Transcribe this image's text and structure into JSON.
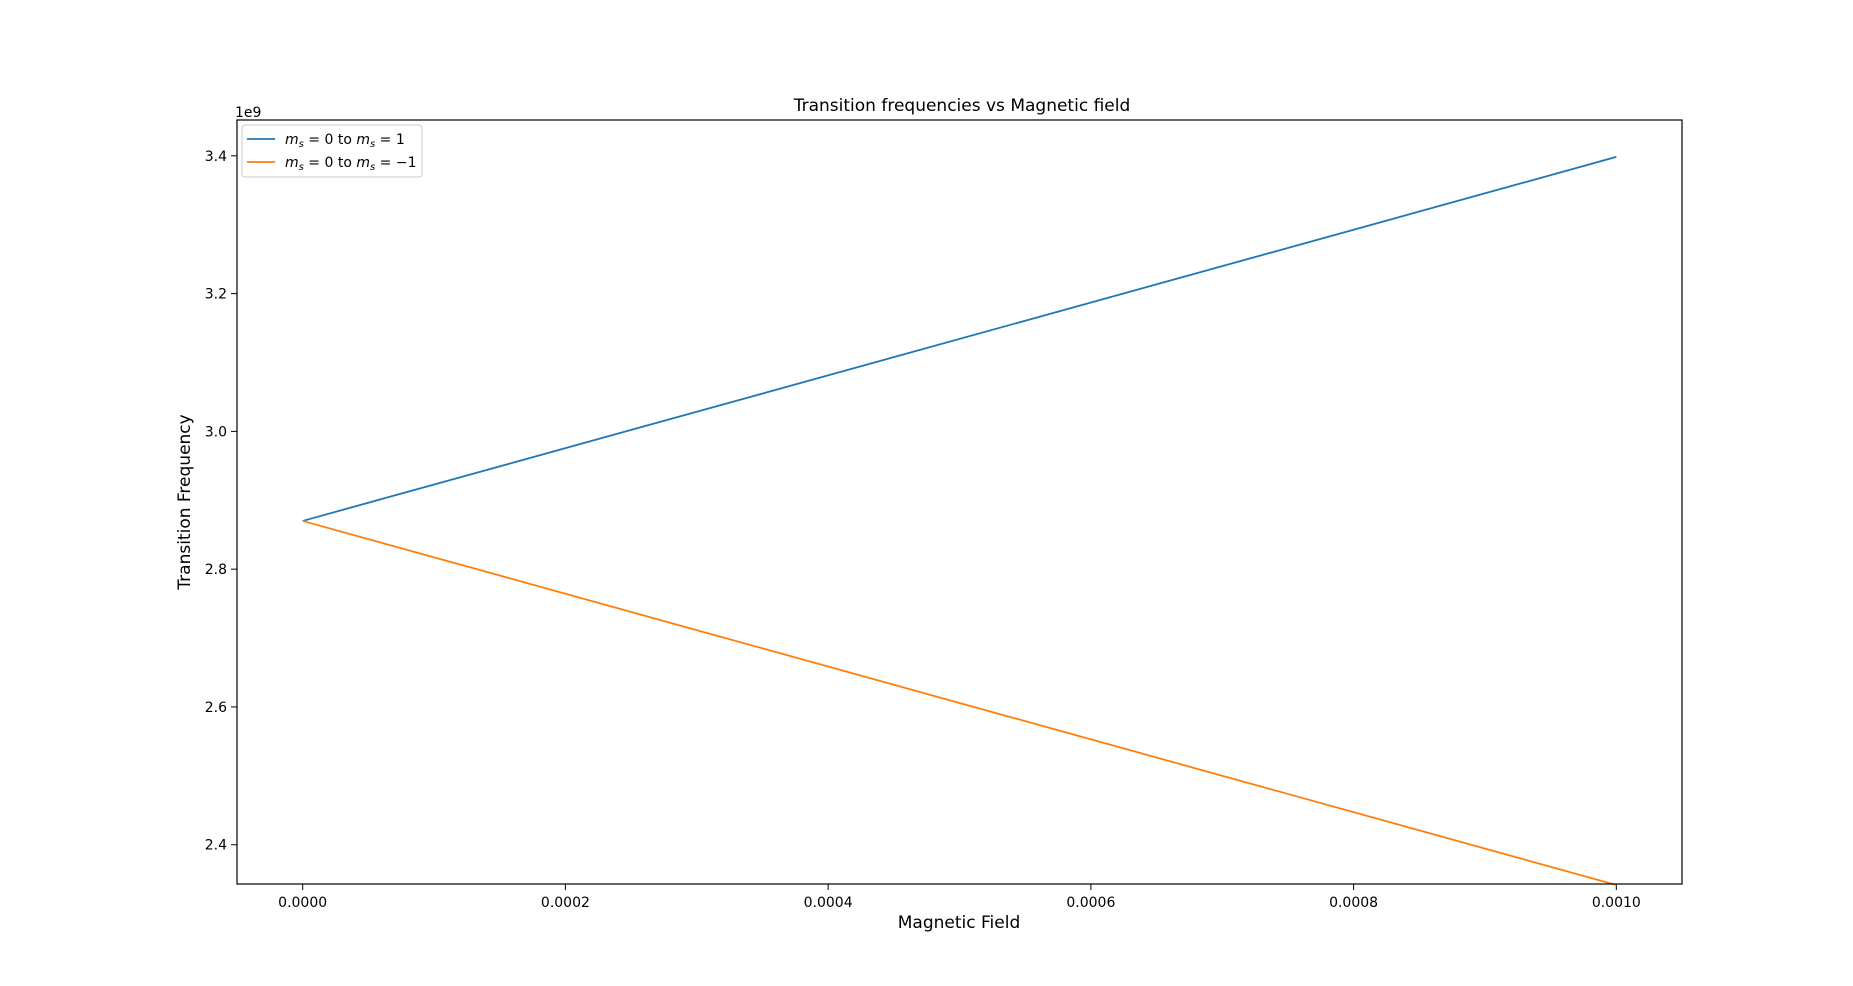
{
  "chart_data": {
    "type": "line",
    "title": "Transition frequencies vs Magnetic field",
    "xlabel": "Magnetic Field",
    "ylabel": "Transition Frequency",
    "y_offset_label": "1e9",
    "xlim": [
      -5e-05,
      0.00105
    ],
    "ylim": [
      2.343,
      3.452
    ],
    "x_ticks": [
      0.0,
      0.0002,
      0.0004,
      0.0006,
      0.0008,
      0.001
    ],
    "x_tick_labels": [
      "0.0000",
      "0.0002",
      "0.0004",
      "0.0006",
      "0.0008",
      "0.0010"
    ],
    "y_ticks": [
      2.4,
      2.6,
      2.8,
      3.0,
      3.2,
      3.4
    ],
    "y_tick_labels": [
      "2.4",
      "2.6",
      "2.8",
      "3.0",
      "3.2",
      "3.4"
    ],
    "grid": false,
    "legend_position": "top-left",
    "series": [
      {
        "name": "m_s = 0 to m_s = 1",
        "color": "#1f77b4",
        "x": [
          0.0,
          0.001
        ],
        "y": [
          2.87,
          3.3984
        ]
      },
      {
        "name": "m_s = 0 to m_s = -1",
        "color": "#ff7f0e",
        "x": [
          0.0,
          0.001
        ],
        "y": [
          2.87,
          2.3416
        ]
      }
    ]
  }
}
